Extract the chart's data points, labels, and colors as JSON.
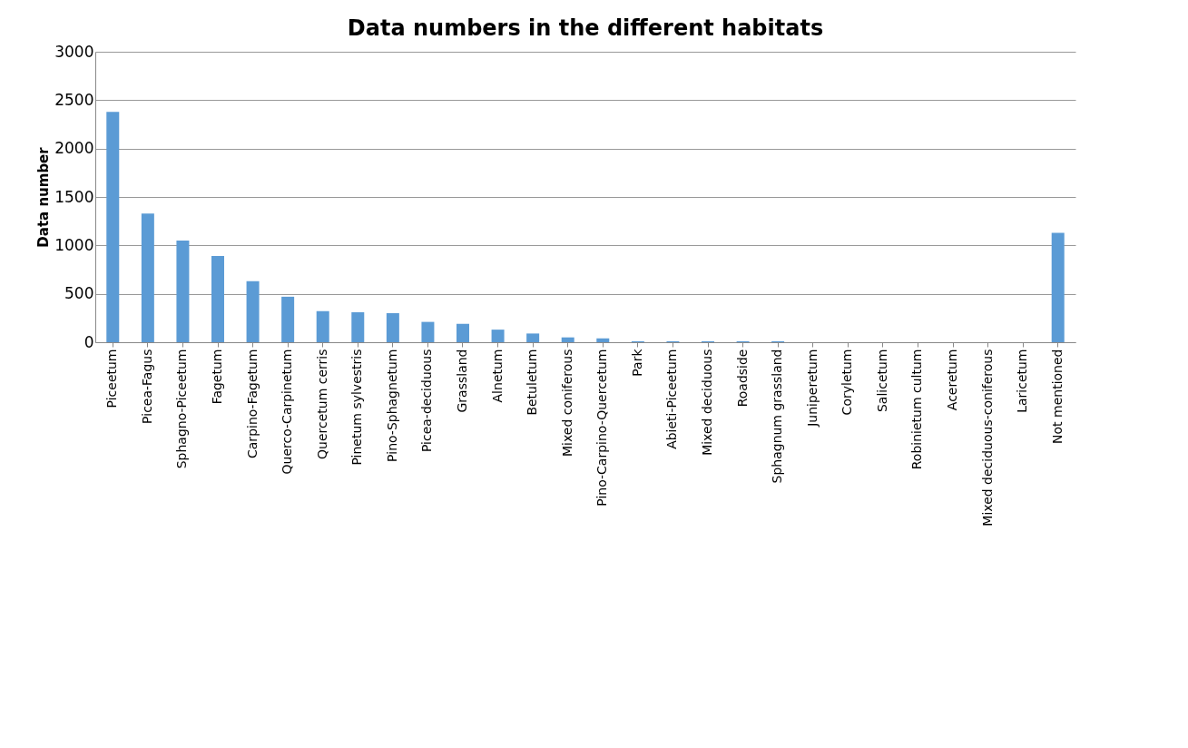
{
  "chart_data": {
    "type": "bar",
    "title": "Data numbers in the different habitats",
    "ylabel": "Data number",
    "categories": [
      "Piceetum",
      "Picea-Fagus",
      "Sphagno-Piceetum",
      "Fagetum",
      "Carpino-Fagetum",
      "Querco-Carpinetum",
      "Quercetum cerris",
      "Pinetum sylvestris",
      "Pino-Sphagnetum",
      "Picea-deciduous",
      "Grassland",
      "Alnetum",
      "Betuletum",
      "Mixed coniferous",
      "Pino-Carpino-Quercetum",
      "Park",
      "Abieti-Piceetum",
      "Mixed deciduous",
      "Roadside",
      "Sphagnum grassland",
      "Juniperetum",
      "Coryletum",
      "Salicetum",
      "Robinietum cultum",
      "Aceretum",
      "Mixed deciduous-coniferous",
      "Laricetum",
      "Not mentioned"
    ],
    "values": [
      2380,
      1330,
      1050,
      890,
      630,
      470,
      320,
      310,
      300,
      210,
      190,
      130,
      90,
      50,
      40,
      10,
      10,
      10,
      10,
      10,
      0,
      0,
      0,
      0,
      0,
      0,
      0,
      1130
    ],
    "color": "#5b9bd5",
    "ylim": [
      0,
      3000
    ],
    "yticks": [
      0,
      500,
      1000,
      1500,
      2000,
      2500,
      3000
    ],
    "grid": "y"
  }
}
